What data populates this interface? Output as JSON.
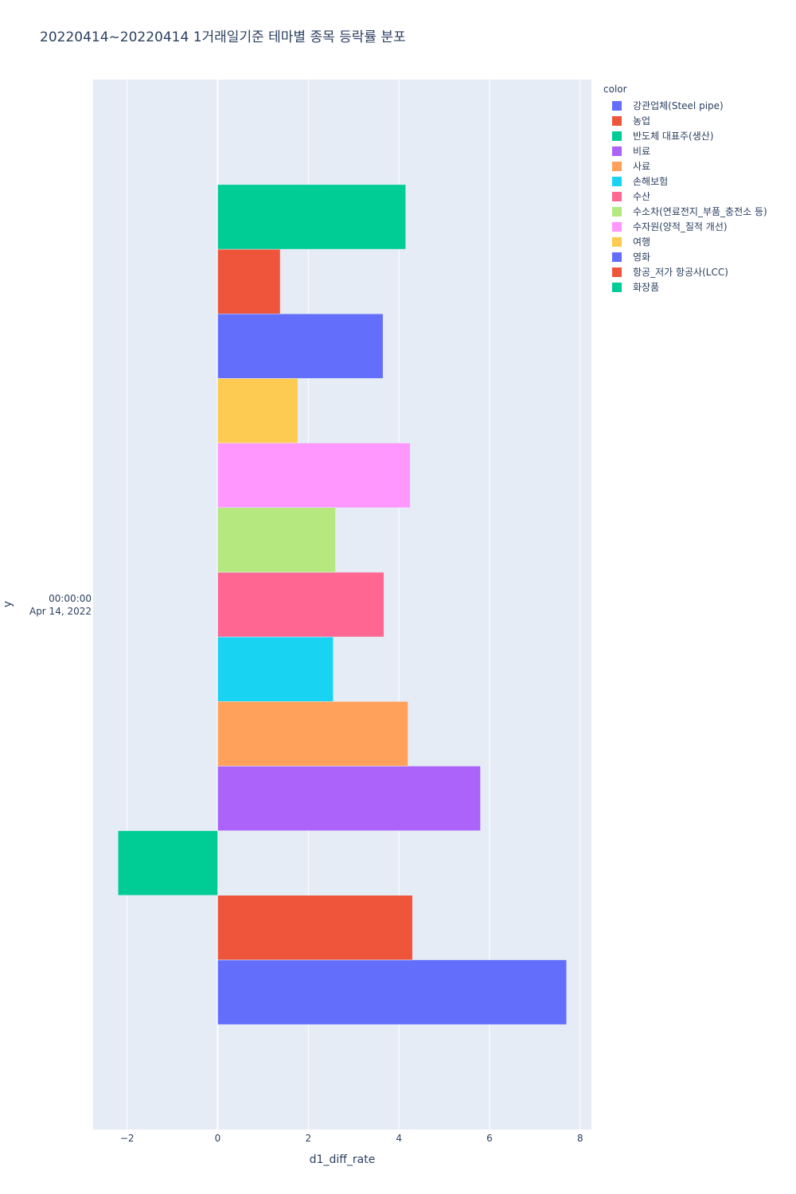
{
  "chart_data": {
    "type": "bar",
    "orientation": "horizontal",
    "barmode": "group",
    "title": "20220414~20220414 1거래일기준 테마별 종목 등락률 분포",
    "xlabel": "d1_diff_rate",
    "ylabel": "y",
    "y_category": [
      "00:00:00",
      "Apr 14, 2022"
    ],
    "xlim": [
      -2.75,
      8.25
    ],
    "xticks": [
      -2,
      0,
      2,
      4,
      6,
      8
    ],
    "xtick_labels": [
      "−2",
      "0",
      "2",
      "4",
      "6",
      "8"
    ],
    "grid": true,
    "plot_bgcolor": "#E5ECF6",
    "legend_title": "color",
    "legend_position": "top-right, outside plot",
    "series": [
      {
        "name": "강관업체(Steel pipe)",
        "value": 7.7,
        "color": "#636EFA"
      },
      {
        "name": "농업",
        "value": 4.3,
        "color": "#EF553B"
      },
      {
        "name": "반도체 대표주(생산)",
        "value": -2.2,
        "color": "#00CC96"
      },
      {
        "name": "비료",
        "value": 5.8,
        "color": "#AB63FA"
      },
      {
        "name": "사료",
        "value": 4.2,
        "color": "#FFA15A"
      },
      {
        "name": "손해보험",
        "value": 2.55,
        "color": "#19D3F3"
      },
      {
        "name": "수산",
        "value": 3.67,
        "color": "#FF6692"
      },
      {
        "name": "수소차(연료전지_부품_충전소 등)",
        "value": 2.6,
        "color": "#B6E880"
      },
      {
        "name": "수자원(양적_질적 개선)",
        "value": 4.25,
        "color": "#FF97FF"
      },
      {
        "name": "여행",
        "value": 1.77,
        "color": "#FECB52"
      },
      {
        "name": "영화",
        "value": 3.65,
        "color": "#636EFA"
      },
      {
        "name": "항공_저가 항공사(LCC)",
        "value": 1.38,
        "color": "#EF553B"
      },
      {
        "name": "화장품",
        "value": 4.15,
        "color": "#00CC96"
      }
    ]
  }
}
